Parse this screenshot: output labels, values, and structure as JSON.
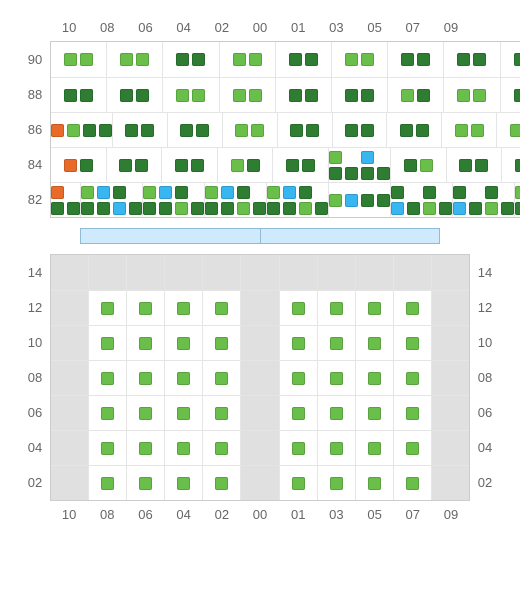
{
  "colors": {
    "light_green": "#6abf4b",
    "dark_green": "#2e7d32",
    "blue": "#37b6f0",
    "orange": "#e86b2a",
    "gray_bg": "#e0e0e0",
    "divider_fill": "#cfeafc",
    "divider_border": "#8fbad8",
    "grid_border": "#cccccc",
    "cell_border": "#e5e5e5"
  },
  "top_columns": [
    "10",
    "08",
    "06",
    "04",
    "02",
    "00",
    "01",
    "03",
    "05",
    "07",
    "09"
  ],
  "bottom_columns": [
    "10",
    "08",
    "06",
    "04",
    "02",
    "00",
    "01",
    "03",
    "05",
    "07",
    "09"
  ],
  "top_rows": [
    "90",
    "88",
    "86",
    "84",
    "82"
  ],
  "bottom_rows": [
    "14",
    "12",
    "10",
    "08",
    "06",
    "04",
    "02"
  ],
  "legend_squares": {
    "LL": [
      "light_green",
      "light_green"
    ],
    "DD": [
      "dark_green",
      "dark_green"
    ],
    "LD": [
      "light_green",
      "dark_green"
    ],
    "DL": [
      "dark_green",
      "light_green"
    ],
    "OL": [
      "orange",
      "light_green"
    ],
    "LO": [
      "light_green",
      "orange"
    ],
    "OD": [
      "orange",
      "dark_green"
    ],
    "LB": [
      "light_green",
      "blue"
    ],
    "BL": [
      "blue",
      "light_green"
    ],
    "L_DD": [
      "light_green",
      "dark_green",
      "dark_green"
    ],
    "D_LD": [
      "dark_green",
      "light_green",
      "dark_green"
    ],
    "B_DD": [
      "blue",
      "dark_green",
      "dark_green"
    ],
    "D_BD": [
      "dark_green",
      "blue",
      "dark_green"
    ],
    "O_DD": [
      "orange",
      "dark_green",
      "dark_green"
    ],
    "LB_DD": [
      "light_green",
      "blue",
      "dark_green",
      "dark_green"
    ]
  },
  "top_grid": [
    [
      [
        "LL"
      ],
      [
        "LL"
      ],
      [
        "DD"
      ],
      [
        "LL"
      ],
      [
        "DD"
      ],
      [
        "LL"
      ],
      [
        "DD"
      ],
      [
        "DD"
      ],
      [
        "DD"
      ],
      [
        "DD"
      ],
      [
        "DD"
      ]
    ],
    [
      [
        "DD"
      ],
      [
        "DD"
      ],
      [
        "LL"
      ],
      [
        "LL"
      ],
      [
        "DD"
      ],
      [
        "DD"
      ],
      [
        "LD"
      ],
      [
        "LL"
      ],
      [
        "DD"
      ],
      [
        "DD"
      ],
      [
        "DD"
      ]
    ],
    [
      [
        "OL",
        "DD"
      ],
      [
        "DD"
      ],
      [
        "DD"
      ],
      [
        "LL"
      ],
      [
        "DD"
      ],
      [
        "DD"
      ],
      [
        "DD"
      ],
      [
        "LL"
      ],
      [
        "LL"
      ],
      [
        "DD"
      ],
      [
        "OD",
        "DD"
      ]
    ],
    [
      [
        "OD"
      ],
      [
        "DD"
      ],
      [
        "DD"
      ],
      [
        "LD"
      ],
      [
        "DD"
      ],
      [
        "L_DD",
        "B_DD"
      ],
      [
        "DL"
      ],
      [
        "DD"
      ],
      [
        "DD"
      ],
      [
        "DD"
      ],
      [
        "LO"
      ]
    ],
    [
      [
        "O_DD"
      ],
      [
        "LB_DD",
        "D_BD"
      ],
      [
        "LB_DD",
        "D_LD"
      ],
      [
        "LB_DD",
        "D_LD"
      ],
      [
        "LB_DD",
        "D_LD"
      ],
      [
        "LB",
        "DD"
      ],
      [
        "D_BD",
        "D_LD"
      ],
      [
        "D_BD",
        "D_LD"
      ],
      [
        "LB_DD",
        "D_LD"
      ],
      [
        "D_BD",
        "D_LD"
      ],
      [
        "O_DD"
      ]
    ]
  ],
  "bottom_grid": [
    [
      "gray",
      "gray",
      "gray",
      "gray",
      "gray",
      "gray",
      "gray",
      "gray",
      "gray",
      "gray",
      "gray"
    ],
    [
      "gray",
      "sq",
      "sq",
      "sq",
      "sq",
      "gray",
      "sq",
      "sq",
      "sq",
      "sq",
      "gray"
    ],
    [
      "gray",
      "sq",
      "sq",
      "sq",
      "sq",
      "gray",
      "sq",
      "sq",
      "sq",
      "sq",
      "gray"
    ],
    [
      "gray",
      "sq",
      "sq",
      "sq",
      "sq",
      "gray",
      "sq",
      "sq",
      "sq",
      "sq",
      "gray"
    ],
    [
      "gray",
      "sq",
      "sq",
      "sq",
      "sq",
      "gray",
      "sq",
      "sq",
      "sq",
      "sq",
      "gray"
    ],
    [
      "gray",
      "sq",
      "sq",
      "sq",
      "sq",
      "gray",
      "sq",
      "sq",
      "sq",
      "sq",
      "gray"
    ],
    [
      "gray",
      "sq",
      "sq",
      "sq",
      "sq",
      "gray",
      "sq",
      "sq",
      "sq",
      "sq",
      "gray"
    ]
  ],
  "bottom_square_color": "light_green",
  "divider_segments": 2
}
